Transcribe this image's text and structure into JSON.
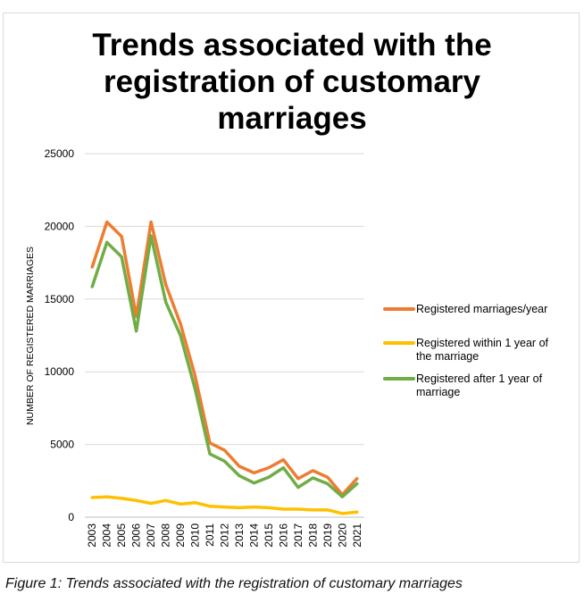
{
  "chart_data": {
    "type": "line",
    "title": "Trends associated with the\nregistration of customary\nmarriages",
    "xlabel": "",
    "ylabel": "NUMBER OF REGISTERED MARRIAGES",
    "categories": [
      "2003",
      "2004",
      "2005",
      "2006",
      "2007",
      "2008",
      "2009",
      "2010",
      "2011",
      "2012",
      "2013",
      "2014",
      "2015",
      "2016",
      "2017",
      "2018",
      "2019",
      "2020",
      "2021"
    ],
    "ylim": [
      0,
      25000
    ],
    "yticks": [
      0,
      5000,
      10000,
      15000,
      20000,
      25000
    ],
    "grid": true,
    "legend_position": "right",
    "series": [
      {
        "name": "Registered marriages/year",
        "color": "#ED7D31",
        "legend_lines": [
          "Registered marriages/year"
        ],
        "values": [
          17200,
          20300,
          19300,
          13800,
          20300,
          16000,
          13300,
          9700,
          5100,
          4600,
          3500,
          3050,
          3400,
          3950,
          2650,
          3200,
          2750,
          1550,
          2650
        ]
      },
      {
        "name": "Registered within 1 year of the marriage",
        "color": "#FFC000",
        "legend_lines": [
          "Registered within 1 year of",
          "the marriage"
        ],
        "values": [
          1350,
          1400,
          1300,
          1150,
          950,
          1150,
          900,
          1000,
          750,
          700,
          650,
          700,
          650,
          550,
          550,
          500,
          500,
          250,
          350
        ]
      },
      {
        "name": "Registered after 1 year of marriage",
        "color": "#70AD47",
        "legend_lines": [
          "Registered after 1 year of",
          "marriage"
        ],
        "values": [
          15850,
          18900,
          17900,
          12800,
          19350,
          14800,
          12500,
          8800,
          4350,
          3850,
          2850,
          2350,
          2750,
          3400,
          2050,
          2700,
          2300,
          1400,
          2300
        ]
      }
    ]
  },
  "caption": "Figure 1: Trends associated with the registration of customary marriages"
}
